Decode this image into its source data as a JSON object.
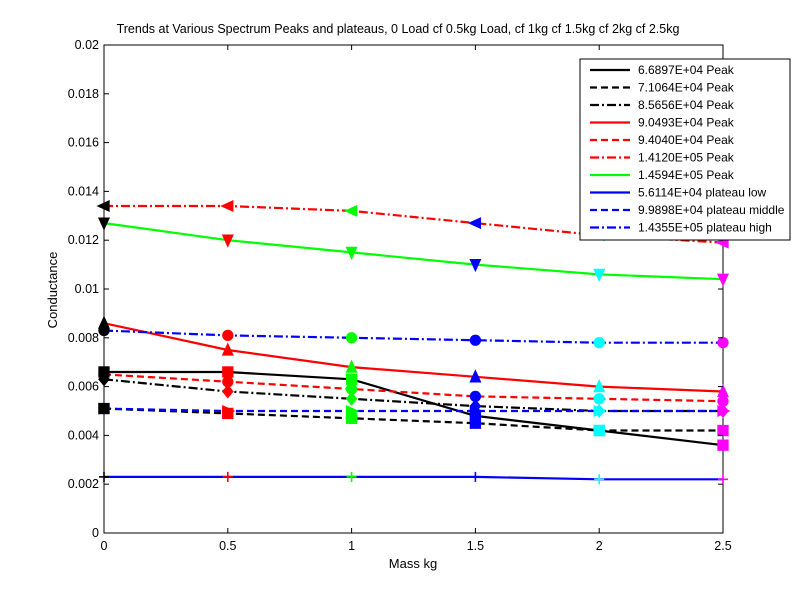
{
  "chart_data": {
    "type": "line",
    "title": "Trends at Various Spectrum Peaks and plateaus, 0 Load cf 0.5kg Load, cf 1kg cf 1.5kg cf 2kg cf 2.5kg",
    "xlabel": "Mass kg",
    "ylabel": "Conductance",
    "xlim": [
      0,
      2.5
    ],
    "ylim": [
      0,
      0.02
    ],
    "x_ticks": [
      "0",
      "0.5",
      "1",
      "1.5",
      "2",
      "2.5"
    ],
    "y_ticks": [
      "0",
      "0.002",
      "0.004",
      "0.006",
      "0.008",
      "0.01",
      "0.012",
      "0.014",
      "0.016",
      "0.018",
      "0.02"
    ],
    "grid": false,
    "legend_position": "top-right",
    "x": [
      0,
      0.5,
      1,
      1.5,
      2,
      2.5
    ],
    "marker_colors": [
      "#000000",
      "#ff0000",
      "#00ff00",
      "#0000ff",
      "#00ffff",
      "#ff00ff"
    ],
    "series": [
      {
        "name": "6.6897E+04 Peak",
        "color": "#000000",
        "dash": "solid",
        "marker": "square",
        "values": [
          0.0066,
          0.0066,
          0.0063,
          0.0048,
          0.0042,
          0.0036
        ]
      },
      {
        "name": "7.1064E+04 Peak",
        "color": "#000000",
        "dash": "dashed",
        "marker": "square",
        "values": [
          0.0051,
          0.0049,
          0.0047,
          0.0045,
          0.0042,
          0.0042
        ]
      },
      {
        "name": "8.5656E+04 Peak",
        "color": "#000000",
        "dash": "dashdot",
        "marker": "diamond",
        "values": [
          0.0063,
          0.0058,
          0.0055,
          0.0052,
          0.005,
          0.005
        ]
      },
      {
        "name": "9.0493E+04 Peak",
        "color": "#ff0000",
        "dash": "solid",
        "marker": "triangle-up",
        "values": [
          0.0086,
          0.0075,
          0.0068,
          0.0064,
          0.006,
          0.0058
        ]
      },
      {
        "name": "9.4040E+04 Peak",
        "color": "#ff0000",
        "dash": "dashed",
        "marker": "circle",
        "values": [
          0.0065,
          0.0062,
          0.0059,
          0.0056,
          0.0055,
          0.0054
        ]
      },
      {
        "name": "1.4120E+05 Peak",
        "color": "#ff0000",
        "dash": "dashdot",
        "marker": "triangle-left",
        "values": [
          0.0134,
          0.0134,
          0.0132,
          0.0127,
          0.0122,
          0.0119
        ]
      },
      {
        "name": "1.4594E+05 Peak",
        "color": "#00ff00",
        "dash": "solid",
        "marker": "triangle-down",
        "values": [
          0.0127,
          0.012,
          0.0115,
          0.011,
          0.0106,
          0.0104
        ]
      },
      {
        "name": "5.6114E+04 plateau low",
        "color": "#0000ff",
        "dash": "solid",
        "marker": "plus",
        "values": [
          0.0023,
          0.0023,
          0.0023,
          0.0023,
          0.0022,
          0.0022
        ]
      },
      {
        "name": "9.9898E+04 plateau middle",
        "color": "#0000ff",
        "dash": "dashed",
        "marker": "triangle-right",
        "values": [
          0.0051,
          0.005,
          0.005,
          0.005,
          0.005,
          0.005
        ]
      },
      {
        "name": "1.4355E+05 plateau high",
        "color": "#0000ff",
        "dash": "dashdot",
        "marker": "circle",
        "values": [
          0.0083,
          0.0081,
          0.008,
          0.0079,
          0.0078,
          0.0078
        ]
      }
    ]
  }
}
